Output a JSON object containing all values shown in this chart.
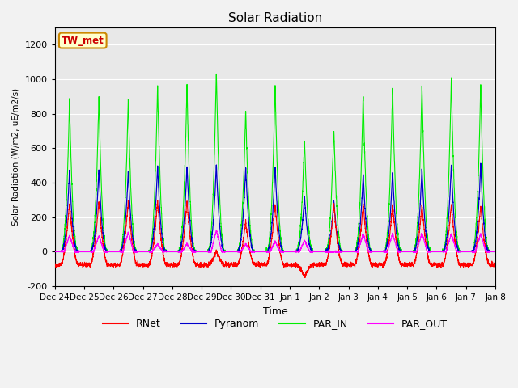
{
  "title": "Solar Radiation",
  "ylabel": "Solar Radiation (W/m2, uE/m2/s)",
  "xlabel": "Time",
  "ylim": [
    -200,
    1300
  ],
  "yticks": [
    -200,
    0,
    200,
    400,
    600,
    800,
    1000,
    1200
  ],
  "n_days": 15,
  "colors": {
    "RNet": "#ff0000",
    "Pyranom": "#0000cc",
    "PAR_IN": "#00ee00",
    "PAR_OUT": "#ff00ff"
  },
  "station_label": "TW_met",
  "station_box_facecolor": "#ffffcc",
  "station_box_edgecolor": "#cc8800",
  "plot_bg": "#e8e8e8",
  "fig_bg": "#f2f2f2",
  "grid_color": "#ffffff",
  "date_labels": [
    "Dec 24",
    "Dec 25",
    "Dec 26",
    "Dec 27",
    "Dec 28",
    "Dec 29",
    "Dec 30",
    "Dec 31",
    "Jan 1",
    "Jan 2",
    "Jan 3",
    "Jan 4",
    "Jan 5",
    "Jan 6",
    "Jan 7",
    "Jan 8"
  ],
  "day_peaks_PAR_IN": [
    870,
    900,
    885,
    965,
    965,
    1045,
    825,
    970,
    660,
    720,
    915,
    955,
    965,
    1005,
    960
  ],
  "day_peaks_Pyranom": [
    470,
    480,
    465,
    500,
    500,
    505,
    490,
    495,
    325,
    300,
    450,
    465,
    480,
    505,
    505
  ],
  "day_peaks_RNet": [
    280,
    295,
    295,
    295,
    295,
    5,
    175,
    275,
    -150,
    275,
    275,
    275,
    275,
    275,
    265
  ],
  "day_peaks_PAR_OUT": [
    95,
    95,
    115,
    45,
    45,
    125,
    45,
    60,
    65,
    0,
    105,
    105,
    110,
    105,
    105
  ],
  "night_RNet": -75,
  "pts_per_day": 288,
  "day_start": 0.2,
  "day_end": 0.8
}
